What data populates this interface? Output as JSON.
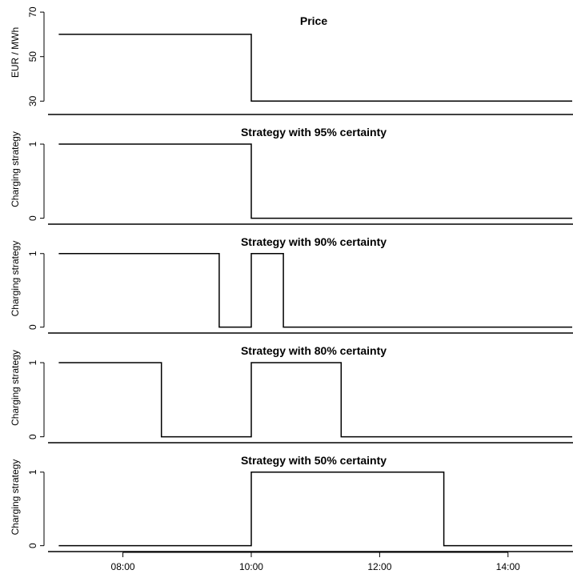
{
  "chart_data": {
    "type": "line",
    "style": "step",
    "line_color": "#000000",
    "grid": false,
    "x_axis": {
      "min": "06:50",
      "max": "15:00",
      "ticks": [
        "08:00",
        "10:00",
        "12:00",
        "14:00"
      ]
    },
    "panels": [
      {
        "title": "Price",
        "ylabel": "EUR / MWh",
        "ylim": [
          24,
          74
        ],
        "yticks": [
          "30",
          "50",
          "70"
        ],
        "series": [
          {
            "x": [
              "07:00",
              "10:00",
              "10:00",
              "15:00"
            ],
            "y": [
              60,
              60,
              30,
              30
            ]
          }
        ]
      },
      {
        "title": "Strategy with 95% certainty",
        "ylabel": "Charging strategy",
        "ylim": [
          -0.08,
          1.4
        ],
        "yticks": [
          "0",
          "1"
        ],
        "series": [
          {
            "x": [
              "07:00",
              "10:00",
              "10:00",
              "15:00"
            ],
            "y": [
              1,
              1,
              0,
              0
            ]
          }
        ]
      },
      {
        "title": "Strategy with 90% certainty",
        "ylabel": "Charging strategy",
        "ylim": [
          -0.08,
          1.4
        ],
        "yticks": [
          "0",
          "1"
        ],
        "series": [
          {
            "x": [
              "07:00",
              "09:30",
              "09:30",
              "10:00",
              "10:00",
              "10:30",
              "10:30",
              "15:00"
            ],
            "y": [
              1,
              1,
              0,
              0,
              1,
              1,
              0,
              0
            ]
          }
        ]
      },
      {
        "title": "Strategy with 80% certainty",
        "ylabel": "Charging strategy",
        "ylim": [
          -0.08,
          1.4
        ],
        "yticks": [
          "0",
          "1"
        ],
        "series": [
          {
            "x": [
              "07:00",
              "08:36",
              "08:36",
              "10:00",
              "10:00",
              "11:24",
              "11:24",
              "15:00"
            ],
            "y": [
              1,
              1,
              0,
              0,
              1,
              1,
              0,
              0
            ]
          }
        ]
      },
      {
        "title": "Strategy with 50% certainty",
        "ylabel": "Charging strategy",
        "ylim": [
          -0.08,
          1.4
        ],
        "yticks": [
          "0",
          "1"
        ],
        "series": [
          {
            "x": [
              "07:00",
              "10:00",
              "10:00",
              "13:00",
              "13:00",
              "15:00"
            ],
            "y": [
              0,
              0,
              1,
              1,
              0,
              0
            ]
          }
        ]
      }
    ]
  }
}
